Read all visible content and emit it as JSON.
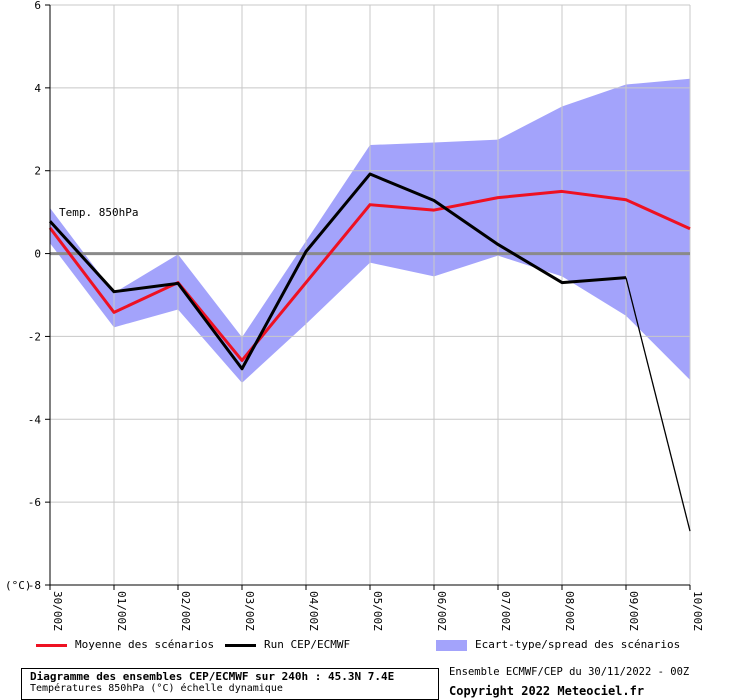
{
  "chart_data": {
    "type": "line",
    "title": "Diagramme des ensembles CEP/ECMWF sur 240h : 45.3N 7.4E",
    "subtitle": "Températures 850hPa (°C) échelle dynamique",
    "series_label": "Temp. 850hPa",
    "y_unit": "(°C)",
    "ylim": [
      -8,
      6
    ],
    "y_ticks": [
      6,
      4,
      2,
      0,
      -2,
      -4,
      -6,
      -8
    ],
    "y_tick_labels": [
      "6",
      "4",
      "2",
      "0",
      "-2",
      "-4",
      "-6",
      "-8"
    ],
    "categories": [
      "30/00Z",
      "01/00Z",
      "02/00Z",
      "03/00Z",
      "04/00Z",
      "05/00Z",
      "06/00Z",
      "07/00Z",
      "08/00Z",
      "09/00Z",
      "10/00Z"
    ],
    "grid": true,
    "zero_line": true,
    "series": [
      {
        "name": "Moyenne des scénarios",
        "color": "#ee1122",
        "values": [
          0.62,
          -1.42,
          -0.7,
          -2.58,
          -0.7,
          1.18,
          1.05,
          1.35,
          1.5,
          1.3,
          0.6
        ]
      },
      {
        "name": "Run CEP/ECMWF",
        "color": "#000000",
        "values": [
          0.78,
          -0.92,
          -0.72,
          -2.78,
          0.05,
          1.92,
          1.28,
          0.22,
          -0.7,
          -0.58,
          -6.7
        ]
      }
    ],
    "band": {
      "name": "Ecart-type/spread des scénarios",
      "color": "#a3a3fb",
      "upper": [
        1.1,
        -0.95,
        -0.02,
        -2.02,
        0.3,
        2.62,
        2.68,
        2.75,
        3.55,
        4.08,
        4.22
      ],
      "lower": [
        0.25,
        -1.78,
        -1.35,
        -3.12,
        -1.7,
        -0.22,
        -0.55,
        -0.05,
        -0.55,
        -1.5,
        -3.05
      ]
    }
  },
  "legend": {
    "mean_label": "Moyenne des scénarios",
    "run_label": "Run CEP/ECMWF",
    "spread_label": "Ecart-type/spread des scénarios"
  },
  "footer": {
    "title": "Diagramme des ensembles CEP/ECMWF sur 240h : 45.3N 7.4E",
    "subtitle": "Températures 850hPa (°C) échelle dynamique",
    "run_info": "Ensemble ECMWF/CEP du 30/11/2022 - 00Z",
    "copyright": "Copyright 2022 Meteociel.fr"
  }
}
